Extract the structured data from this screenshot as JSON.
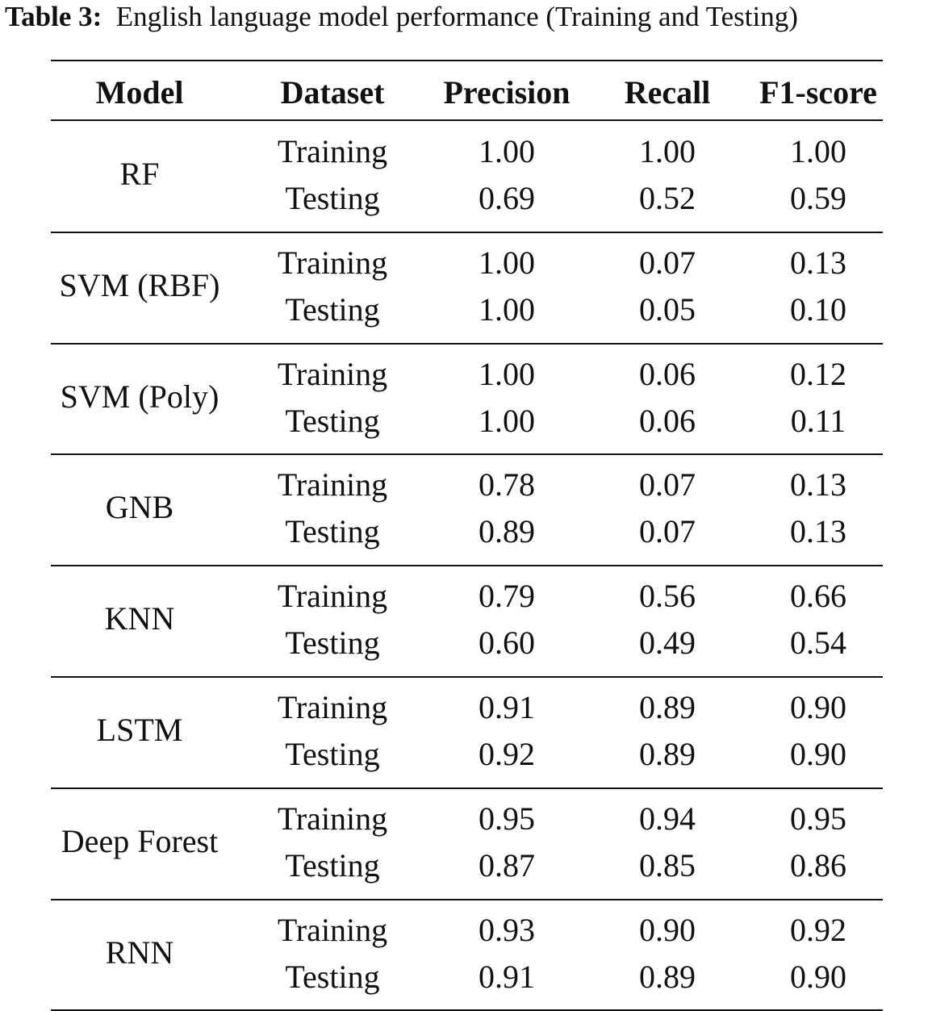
{
  "caption": {
    "label": "Table 3:",
    "text": "English language model performance (Training and Testing)"
  },
  "table": {
    "header": [
      "Model",
      "Dataset",
      "Precision",
      "Recall",
      "F1-score"
    ],
    "groups": [
      {
        "model": "RF",
        "rows": [
          [
            "Training",
            "1.00",
            "1.00",
            "1.00"
          ],
          [
            "Testing",
            "0.69",
            "0.52",
            "0.59"
          ]
        ]
      },
      {
        "model": "SVM (RBF)",
        "rows": [
          [
            "Training",
            "1.00",
            "0.07",
            "0.13"
          ],
          [
            "Testing",
            "1.00",
            "0.05",
            "0.10"
          ]
        ]
      },
      {
        "model": "SVM (Poly)",
        "rows": [
          [
            "Training",
            "1.00",
            "0.06",
            "0.12"
          ],
          [
            "Testing",
            "1.00",
            "0.06",
            "0.11"
          ]
        ]
      },
      {
        "model": "GNB",
        "rows": [
          [
            "Training",
            "0.78",
            "0.07",
            "0.13"
          ],
          [
            "Testing",
            "0.89",
            "0.07",
            "0.13"
          ]
        ]
      },
      {
        "model": "KNN",
        "rows": [
          [
            "Training",
            "0.79",
            "0.56",
            "0.66"
          ],
          [
            "Testing",
            "0.60",
            "0.49",
            "0.54"
          ]
        ]
      },
      {
        "model": "LSTM",
        "rows": [
          [
            "Training",
            "0.91",
            "0.89",
            "0.90"
          ],
          [
            "Testing",
            "0.92",
            "0.89",
            "0.90"
          ]
        ]
      },
      {
        "model": "Deep Forest",
        "rows": [
          [
            "Training",
            "0.95",
            "0.94",
            "0.95"
          ],
          [
            "Testing",
            "0.87",
            "0.85",
            "0.86"
          ]
        ]
      },
      {
        "model": "RNN",
        "rows": [
          [
            "Training",
            "0.93",
            "0.90",
            "0.92"
          ],
          [
            "Testing",
            "0.91",
            "0.89",
            "0.90"
          ]
        ]
      }
    ]
  }
}
